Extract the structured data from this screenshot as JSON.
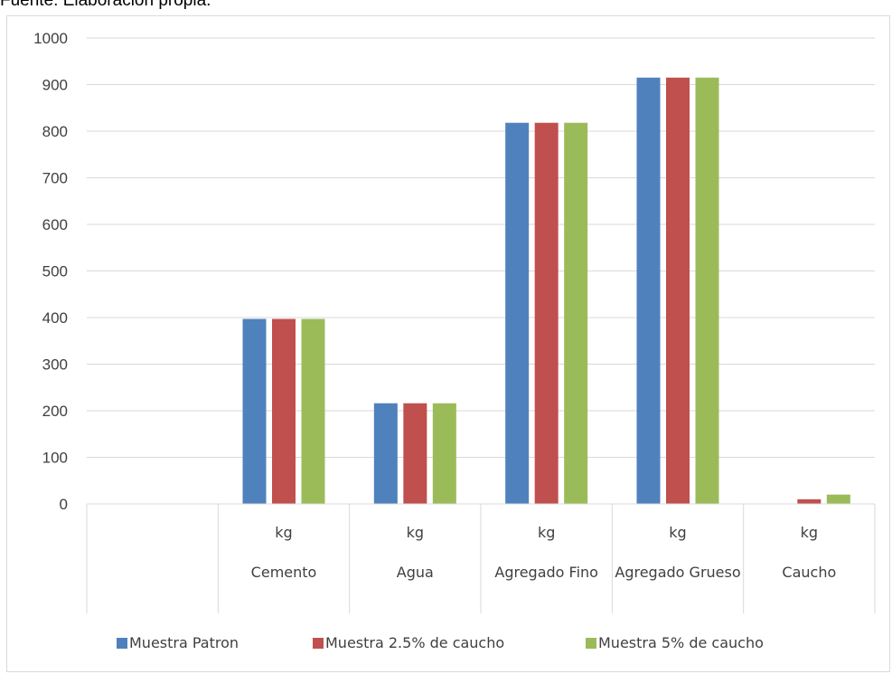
{
  "source_note": "Fuente: Elaboración propia.",
  "chart_data": {
    "type": "bar",
    "categories": [
      {
        "unit": "",
        "name": ""
      },
      {
        "unit": "kg",
        "name": "Cemento"
      },
      {
        "unit": "kg",
        "name": "Agua"
      },
      {
        "unit": "kg",
        "name": "Agregado Fino"
      },
      {
        "unit": "kg",
        "name": "Agregado Grueso"
      },
      {
        "unit": "kg",
        "name": "Caucho"
      }
    ],
    "series": [
      {
        "name": "Muestra Patron",
        "color": "#4f81bd",
        "values": [
          null,
          397,
          216,
          818,
          915,
          0
        ]
      },
      {
        "name": "Muestra 2.5% de caucho",
        "color": "#c0504d",
        "values": [
          null,
          397,
          216,
          818,
          915,
          10
        ]
      },
      {
        "name": "Muestra 5% de caucho",
        "color": "#9bbb59",
        "values": [
          null,
          397,
          216,
          818,
          915,
          20
        ]
      }
    ],
    "ylim": [
      0,
      1000
    ],
    "yticks": [
      0,
      100,
      200,
      300,
      400,
      500,
      600,
      700,
      800,
      900,
      1000
    ],
    "grid": true,
    "legend_position": "bottom"
  }
}
